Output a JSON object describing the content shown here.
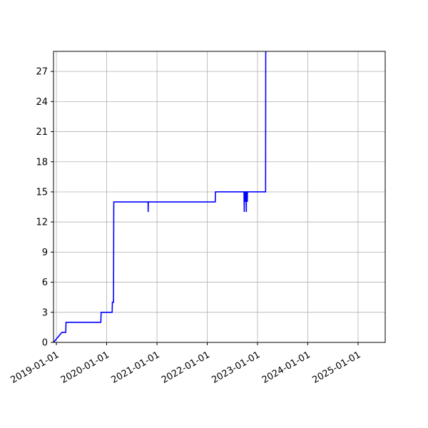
{
  "chart_data": {
    "type": "line",
    "title": "",
    "xlabel": "",
    "ylabel": "",
    "x_axis_type": "date",
    "xlim": [
      "2018-12-11",
      "2025-07-17"
    ],
    "ylim": [
      0,
      29
    ],
    "x_ticks": [
      "2019-01-01",
      "2020-01-01",
      "2021-01-01",
      "2022-01-01",
      "2023-01-01",
      "2024-01-01",
      "2025-01-01"
    ],
    "y_ticks": [
      0,
      3,
      6,
      9,
      12,
      15,
      18,
      21,
      24,
      27
    ],
    "grid": true,
    "legend": "none",
    "series": [
      {
        "color": "#0000ff",
        "points": [
          [
            "2018-12-11",
            0
          ],
          [
            "2019-02-10",
            1
          ],
          [
            "2019-03-10",
            1
          ],
          [
            "2019-03-12",
            2
          ],
          [
            "2019-11-20",
            2
          ],
          [
            "2019-11-22",
            3
          ],
          [
            "2020-02-10",
            3
          ],
          [
            "2020-02-12",
            4
          ],
          [
            "2020-02-20",
            4
          ],
          [
            "2020-02-22",
            14
          ],
          [
            "2020-10-28",
            14
          ],
          [
            "2020-10-29",
            13
          ],
          [
            "2020-10-30",
            14
          ],
          [
            "2022-02-28",
            14
          ],
          [
            "2022-03-02",
            15
          ],
          [
            "2022-09-25",
            15
          ],
          [
            "2022-09-26",
            14
          ],
          [
            "2022-09-27",
            13
          ],
          [
            "2022-09-28",
            15
          ],
          [
            "2022-10-03",
            15
          ],
          [
            "2022-10-04",
            14
          ],
          [
            "2022-10-05",
            15
          ],
          [
            "2022-10-10",
            15
          ],
          [
            "2022-10-11",
            14
          ],
          [
            "2022-10-12",
            13
          ],
          [
            "2022-10-13",
            15
          ],
          [
            "2022-10-18",
            15
          ],
          [
            "2022-10-19",
            14
          ],
          [
            "2022-10-20",
            15
          ],
          [
            "2023-03-01",
            15
          ],
          [
            "2023-03-02",
            29
          ]
        ]
      }
    ]
  }
}
